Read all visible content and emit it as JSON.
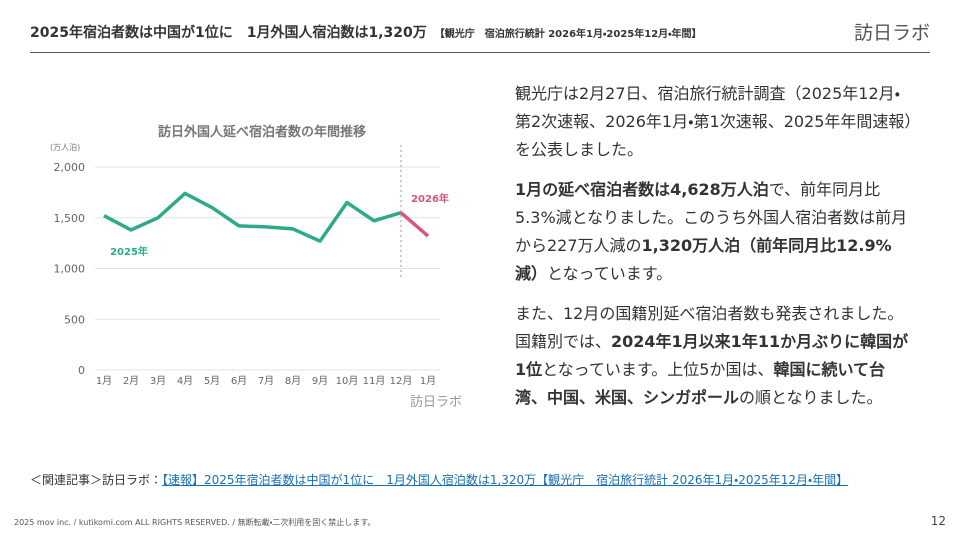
{
  "header": {
    "title": "2025年宿泊者数は中国が1位に　1月外国人宿泊数は1,320万",
    "subtitle": "【観光庁　宿泊旅行統計 2026年1月・2025年12月・年間】",
    "logo": "訪日ラボ"
  },
  "chart_data": {
    "type": "line",
    "title": "訪日外国人延べ宿泊者数の年間推移",
    "y_unit_label": "(万人泊)",
    "watermark": "訪日ラボ",
    "categories": [
      "1月",
      "2月",
      "3月",
      "4月",
      "5月",
      "6月",
      "7月",
      "8月",
      "9月",
      "10月",
      "11月",
      "12月",
      "1月"
    ],
    "series": [
      {
        "name": "2025年",
        "color": "#2eaa8a",
        "values": [
          1520,
          1380,
          1500,
          1740,
          1600,
          1420,
          1410,
          1390,
          1270,
          1650,
          1470,
          1550,
          null
        ]
      },
      {
        "name": "2026年",
        "color": "#d9557a",
        "values": [
          null,
          null,
          null,
          null,
          null,
          null,
          null,
          null,
          null,
          null,
          null,
          1550,
          1320
        ]
      }
    ],
    "ylim": [
      0,
      2000
    ],
    "yticks": [
      0,
      500,
      {
        "value": 1000,
        "label": "1,000"
      },
      {
        "value": 1500,
        "label": "1,500"
      },
      {
        "value": 2000,
        "label": "2,000"
      }
    ],
    "grid": true
  },
  "body": {
    "paragraphs": [
      [
        {
          "text": "観光庁は2月27日、宿泊旅行統計調査（2025年12月・第2次速報、2026年1月・第1次速報、2025年年間速報）を公表しました。",
          "bold": false
        }
      ],
      [
        {
          "text": "1月の延べ宿泊者数は4,628万人泊",
          "bold": true
        },
        {
          "text": "で、前年同月比5.3%減となりました。このうち外国人宿泊者数は前月から227万人減の",
          "bold": false
        },
        {
          "text": "1,320万人泊（前年同月比12.9%減）",
          "bold": true
        },
        {
          "text": "となっています。",
          "bold": false
        }
      ],
      [
        {
          "text": "また、12月の国籍別延べ宿泊者数も発表されました。国籍別では、",
          "bold": false
        },
        {
          "text": "2024年1月以来1年11か月ぶりに韓国が1位",
          "bold": true
        },
        {
          "text": "となっています。上位5か国は、",
          "bold": false
        },
        {
          "text": "韓国に続いて台湾、中国、米国、シンガポール",
          "bold": true
        },
        {
          "text": "の順となりました。",
          "bold": false
        }
      ]
    ]
  },
  "related": {
    "prefix": "＜関連記事＞訪日ラボ：",
    "link": "【速報】2025年宿泊者数は中国が1位に　1月外国人宿泊数は1,320万【観光庁　宿泊旅行統計 2026年1月・2025年12月・年間】"
  },
  "footer": {
    "copyright": "2025 mov inc. / kutikomi.com ALL RIGHTS RESERVED. / 無断転載・二次利用を固く禁止します。",
    "page": "12"
  }
}
